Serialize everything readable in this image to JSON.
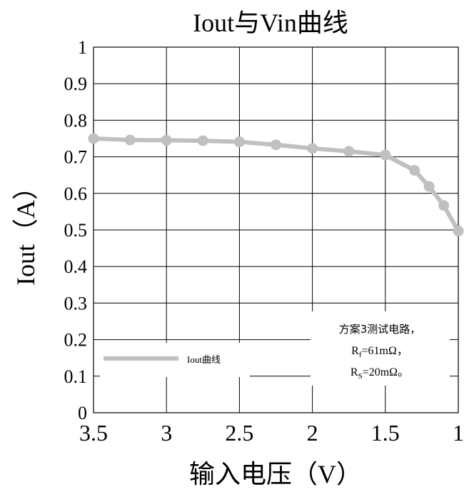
{
  "chart_data": {
    "type": "line",
    "title": "Iout与Vin曲线",
    "xlabel": "输入电压（V）",
    "ylabel": "Iout（A）",
    "xlim": [
      3.5,
      1
    ],
    "x_reversed": true,
    "ylim": [
      0,
      1
    ],
    "grid": true,
    "x_ticks": [
      "3.5",
      "3",
      "2.5",
      "2",
      "1.5",
      "1"
    ],
    "x_tick_values": [
      3.5,
      3,
      2.5,
      2,
      1.5,
      1
    ],
    "y_ticks": [
      "0",
      "0.1",
      "0.2",
      "0.3",
      "0.4",
      "0.5",
      "0.6",
      "0.7",
      "0.8",
      "0.9",
      "1"
    ],
    "y_tick_values": [
      0,
      0.1,
      0.2,
      0.3,
      0.4,
      0.5,
      0.6,
      0.7,
      0.8,
      0.9,
      1
    ],
    "series": [
      {
        "name": "Iout曲线",
        "color": "#c0c0c0",
        "x": [
          3.5,
          3.25,
          3.0,
          2.75,
          2.5,
          2.25,
          2.0,
          1.75,
          1.5,
          1.3,
          1.2,
          1.1,
          1.0
        ],
        "y": [
          0.75,
          0.746,
          0.745,
          0.744,
          0.741,
          0.733,
          0.723,
          0.715,
          0.705,
          0.663,
          0.619,
          0.567,
          0.497
        ]
      }
    ],
    "legend": {
      "label": "Iout曲线",
      "position": "bottom-left"
    },
    "annotation": {
      "line1": "方案3测试电路，",
      "line2_main": "R",
      "line2_sub": "f",
      "line2_rest": "=61mΩ，",
      "line3_main": "R",
      "line3_sub": "S",
      "line3_rest": "=20mΩ。"
    }
  }
}
